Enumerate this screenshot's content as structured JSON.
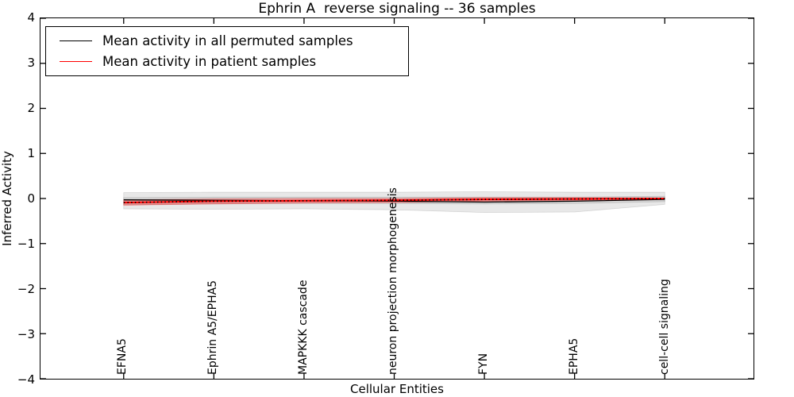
{
  "title": "Ephrin A  reverse signaling -- 36 samples",
  "legend": {
    "entries": [
      {
        "label": "Mean activity in all permuted samples",
        "color": "#000000"
      },
      {
        "label": "Mean activity in patient samples",
        "color": "#ff0000"
      }
    ],
    "position": "upper left"
  },
  "chart_data": {
    "type": "line",
    "title": "Ephrin A  reverse signaling -- 36 samples",
    "xlabel": "Cellular Entities",
    "ylabel": "Inferred Activity",
    "ylim": [
      -4,
      4
    ],
    "yticks": [
      4,
      3,
      2,
      1,
      0,
      -1,
      -2,
      -3,
      -4
    ],
    "grid": false,
    "legend_position": "upper left",
    "categories": [
      "EFNA5",
      "Ephrin A5/EPHA5",
      "MAPKKK cascade",
      "neuron projection morphogenesis",
      "FYN",
      "EPHA5",
      "cell-cell signaling"
    ],
    "series": [
      {
        "name": "Mean activity in all permuted samples",
        "color": "#000000",
        "line": "solid",
        "width": 1.3,
        "values": [
          -0.03,
          -0.04,
          -0.05,
          -0.06,
          -0.08,
          -0.06,
          -0.02
        ]
      },
      {
        "name": "Mean activity in patient samples",
        "color": "#ff0000",
        "line": "solid",
        "width": 2.0,
        "dot_overlay": "#000000",
        "values": [
          -0.09,
          -0.06,
          -0.05,
          -0.04,
          -0.02,
          -0.01,
          0.0
        ]
      }
    ],
    "bands": [
      {
        "name": "permuted-samples-range-outer",
        "color": "#000000",
        "opacity": 0.09,
        "upper": [
          0.13,
          0.14,
          0.14,
          0.14,
          0.15,
          0.14,
          0.14
        ],
        "lower": [
          -0.23,
          -0.24,
          -0.23,
          -0.25,
          -0.31,
          -0.3,
          -0.13
        ]
      },
      {
        "name": "permuted-samples-range-inner",
        "color": "#000000",
        "opacity": 0.09,
        "upper": [
          0.02,
          0.03,
          0.03,
          0.03,
          0.03,
          0.03,
          0.05
        ],
        "lower": [
          -0.14,
          -0.12,
          -0.11,
          -0.11,
          -0.12,
          -0.11,
          -0.07
        ]
      },
      {
        "name": "patient-samples-range",
        "color": "#ff0000",
        "opacity": 0.3,
        "upper": [
          -0.03,
          -0.01,
          0.0,
          0.0,
          0.02,
          0.02,
          0.01
        ],
        "lower": [
          -0.15,
          -0.12,
          -0.1,
          -0.09,
          -0.06,
          -0.04,
          -0.01
        ]
      }
    ]
  }
}
